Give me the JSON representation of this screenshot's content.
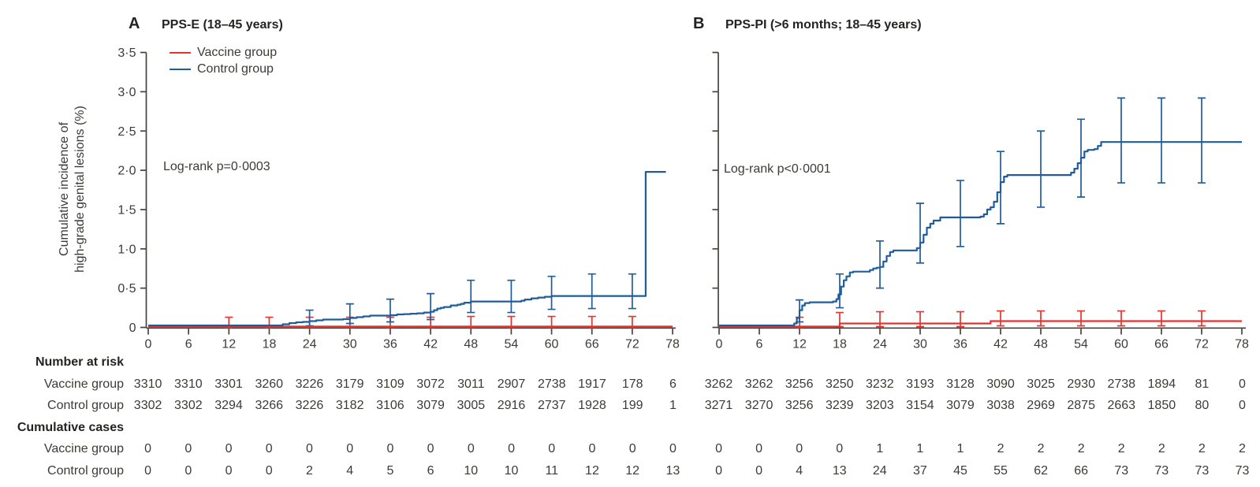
{
  "figure": {
    "panels": [
      {
        "letter": "A",
        "title": "PPS-E (18–45 years)",
        "annotation": "Log-rank p=0·0003"
      },
      {
        "letter": "B",
        "title": "PPS-PI (>6 months; 18–45 years)",
        "annotation": "Log-rank p<0·0001"
      }
    ],
    "y_axis_label_line1": "Cumulative incidence of",
    "y_axis_label_line2": "high-grade genital lesions (%)",
    "legend": {
      "items": [
        {
          "label": "Vaccine group",
          "color": "#e5332d"
        },
        {
          "label": "Control group",
          "color": "#1e5c9c"
        }
      ]
    }
  },
  "chart_data": [
    {
      "type": "line",
      "panel": "A",
      "title": "PPS-E (18–45 years)",
      "annotation": "Log-rank p=0·0003",
      "ylabel": "Cumulative incidence of high-grade genital lesions (%)",
      "xlim": [
        0,
        78
      ],
      "ylim": [
        0,
        3.5
      ],
      "x_ticks": [
        0,
        6,
        12,
        18,
        24,
        30,
        36,
        42,
        48,
        54,
        60,
        66,
        72,
        78
      ],
      "y_ticks": [
        0,
        0.5,
        1.0,
        1.5,
        2.0,
        2.5,
        3.0,
        3.5
      ],
      "y_tick_labels": [
        "0",
        "0·5",
        "1·0",
        "1·5",
        "2·0",
        "2·5",
        "3·0",
        "3·5"
      ],
      "series": [
        {
          "name": "Vaccine group",
          "color": "#e5332d",
          "step_points": [
            [
              0,
              0.012
            ],
            [
              78,
              0.012
            ]
          ],
          "error_bars": [
            [
              12,
              0,
              0.13
            ],
            [
              18,
              0,
              0.13
            ],
            [
              24,
              0,
              0.13
            ],
            [
              30,
              0,
              0.13
            ],
            [
              36,
              0,
              0.13
            ],
            [
              42,
              0,
              0.13
            ],
            [
              48,
              0,
              0.14
            ],
            [
              54,
              0,
              0.14
            ],
            [
              60,
              0,
              0.14
            ],
            [
              66,
              0,
              0.14
            ],
            [
              72,
              0,
              0.14
            ]
          ]
        },
        {
          "name": "Control group",
          "color": "#1e5c9c",
          "step_points": [
            [
              0,
              0.025
            ],
            [
              19.2,
              0.025
            ],
            [
              20,
              0.04
            ],
            [
              21,
              0.055
            ],
            [
              22,
              0.065
            ],
            [
              23,
              0.07
            ],
            [
              24,
              0.08
            ],
            [
              25,
              0.09
            ],
            [
              26,
              0.1
            ],
            [
              29,
              0.105
            ],
            [
              30,
              0.12
            ],
            [
              31,
              0.13
            ],
            [
              32,
              0.14
            ],
            [
              33,
              0.15
            ],
            [
              36,
              0.155
            ],
            [
              37,
              0.165
            ],
            [
              38,
              0.17
            ],
            [
              39,
              0.175
            ],
            [
              40,
              0.18
            ],
            [
              41,
              0.19
            ],
            [
              42,
              0.2
            ],
            [
              42.5,
              0.22
            ],
            [
              43,
              0.24
            ],
            [
              43.5,
              0.25
            ],
            [
              44,
              0.26
            ],
            [
              45,
              0.28
            ],
            [
              46,
              0.29
            ],
            [
              46.5,
              0.3
            ],
            [
              47,
              0.315
            ],
            [
              48,
              0.33
            ],
            [
              55,
              0.33
            ],
            [
              55.5,
              0.34
            ],
            [
              56,
              0.355
            ],
            [
              57,
              0.37
            ],
            [
              58,
              0.38
            ],
            [
              59,
              0.39
            ],
            [
              60,
              0.4
            ],
            [
              73.5,
              0.4
            ],
            [
              74,
              1.98
            ],
            [
              77,
              1.98
            ]
          ],
          "error_bars": [
            [
              24,
              0.02,
              0.22
            ],
            [
              30,
              0.05,
              0.3
            ],
            [
              36,
              0.07,
              0.36
            ],
            [
              42,
              0.1,
              0.43
            ],
            [
              48,
              0.19,
              0.6
            ],
            [
              54,
              0.19,
              0.6
            ],
            [
              60,
              0.23,
              0.65
            ],
            [
              66,
              0.24,
              0.68
            ],
            [
              72,
              0.24,
              0.68
            ]
          ]
        }
      ]
    },
    {
      "type": "line",
      "panel": "B",
      "title": "PPS-PI (>6 months; 18–45 years)",
      "annotation": "Log-rank p<0·0001",
      "xlim": [
        0,
        78
      ],
      "ylim": [
        0,
        3.5
      ],
      "x_ticks": [
        0,
        6,
        12,
        18,
        24,
        30,
        36,
        42,
        48,
        54,
        60,
        66,
        72,
        78
      ],
      "y_ticks": [
        0,
        0.5,
        1.0,
        1.5,
        2.0,
        2.5,
        3.0,
        3.5
      ],
      "y_tick_labels": [],
      "series": [
        {
          "name": "Vaccine group",
          "color": "#e5332d",
          "step_points": [
            [
              0,
              0.012
            ],
            [
              17.7,
              0.012
            ],
            [
              18,
              0.05
            ],
            [
              40,
              0.05
            ],
            [
              40.5,
              0.08
            ],
            [
              78,
              0.08
            ]
          ],
          "error_bars": [
            [
              12,
              0,
              0.13
            ],
            [
              18,
              0.01,
              0.19
            ],
            [
              24,
              0.01,
              0.2
            ],
            [
              30,
              0.01,
              0.2
            ],
            [
              36,
              0.01,
              0.2
            ],
            [
              42,
              0.02,
              0.21
            ],
            [
              48,
              0.02,
              0.21
            ],
            [
              54,
              0.02,
              0.21
            ],
            [
              60,
              0.02,
              0.21
            ],
            [
              66,
              0.02,
              0.21
            ],
            [
              72,
              0.02,
              0.21
            ]
          ]
        },
        {
          "name": "Control group",
          "color": "#1e5c9c",
          "step_points": [
            [
              0,
              0.025
            ],
            [
              10.8,
              0.025
            ],
            [
              11.2,
              0.05
            ],
            [
              11.6,
              0.12
            ],
            [
              12,
              0.22
            ],
            [
              12.4,
              0.28
            ],
            [
              12.8,
              0.31
            ],
            [
              13.5,
              0.32
            ],
            [
              17,
              0.33
            ],
            [
              17.5,
              0.36
            ],
            [
              17.8,
              0.42
            ],
            [
              18.2,
              0.52
            ],
            [
              18.6,
              0.6
            ],
            [
              19,
              0.65
            ],
            [
              19.5,
              0.7
            ],
            [
              20,
              0.71
            ],
            [
              22.5,
              0.73
            ],
            [
              23,
              0.75
            ],
            [
              23.5,
              0.76
            ],
            [
              24,
              0.77
            ],
            [
              24.5,
              0.84
            ],
            [
              25,
              0.91
            ],
            [
              25.5,
              0.96
            ],
            [
              26,
              0.98
            ],
            [
              29,
              0.98
            ],
            [
              29.5,
              1.01
            ],
            [
              30,
              1.08
            ],
            [
              30.5,
              1.18
            ],
            [
              31,
              1.27
            ],
            [
              31.5,
              1.32
            ],
            [
              32,
              1.36
            ],
            [
              33,
              1.4
            ],
            [
              39,
              1.41
            ],
            [
              39.5,
              1.44
            ],
            [
              40,
              1.5
            ],
            [
              40.5,
              1.53
            ],
            [
              41,
              1.6
            ],
            [
              41.5,
              1.72
            ],
            [
              42,
              1.85
            ],
            [
              42.5,
              1.92
            ],
            [
              43,
              1.94
            ],
            [
              52,
              1.94
            ],
            [
              52.5,
              1.97
            ],
            [
              53,
              2.02
            ],
            [
              53.5,
              2.09
            ],
            [
              54,
              2.16
            ],
            [
              54.5,
              2.24
            ],
            [
              55,
              2.26
            ],
            [
              56,
              2.27
            ],
            [
              56.5,
              2.31
            ],
            [
              57,
              2.36
            ],
            [
              78,
              2.36
            ]
          ],
          "error_bars": [
            [
              12,
              0.07,
              0.35
            ],
            [
              18,
              0.25,
              0.68
            ],
            [
              24,
              0.5,
              1.1
            ],
            [
              30,
              0.82,
              1.58
            ],
            [
              36,
              1.03,
              1.87
            ],
            [
              42,
              1.32,
              2.24
            ],
            [
              48,
              1.53,
              2.5
            ],
            [
              54,
              1.66,
              2.65
            ],
            [
              60,
              1.84,
              2.92
            ],
            [
              66,
              1.84,
              2.92
            ],
            [
              72,
              1.84,
              2.92
            ]
          ]
        }
      ]
    }
  ],
  "risk_table": {
    "sections": [
      {
        "header": "Number at risk",
        "rows": [
          {
            "label": "Vaccine group",
            "panelA": [
              3310,
              3310,
              3301,
              3260,
              3226,
              3179,
              3109,
              3072,
              3011,
              2907,
              2738,
              1917,
              178,
              6
            ],
            "panelB": [
              3262,
              3262,
              3256,
              3250,
              3232,
              3193,
              3128,
              3090,
              3025,
              2930,
              2738,
              1894,
              81,
              0
            ]
          },
          {
            "label": "Control group",
            "panelA": [
              3302,
              3302,
              3294,
              3266,
              3226,
              3182,
              3106,
              3079,
              3005,
              2916,
              2737,
              1928,
              199,
              1
            ],
            "panelB": [
              3271,
              3270,
              3256,
              3239,
              3203,
              3154,
              3079,
              3038,
              2969,
              2875,
              2663,
              1850,
              80,
              0
            ]
          }
        ]
      },
      {
        "header": "Cumulative cases",
        "rows": [
          {
            "label": "Vaccine group",
            "panelA": [
              0,
              0,
              0,
              0,
              0,
              0,
              0,
              0,
              0,
              0,
              0,
              0,
              0,
              0
            ],
            "panelB": [
              0,
              0,
              0,
              0,
              1,
              1,
              1,
              2,
              2,
              2,
              2,
              2,
              2,
              2
            ]
          },
          {
            "label": "Control group",
            "panelA": [
              0,
              0,
              0,
              0,
              2,
              4,
              5,
              6,
              10,
              10,
              11,
              12,
              12,
              13
            ],
            "panelB": [
              0,
              0,
              4,
              13,
              24,
              37,
              45,
              55,
              62,
              66,
              73,
              73,
              73,
              73
            ]
          }
        ]
      }
    ]
  }
}
